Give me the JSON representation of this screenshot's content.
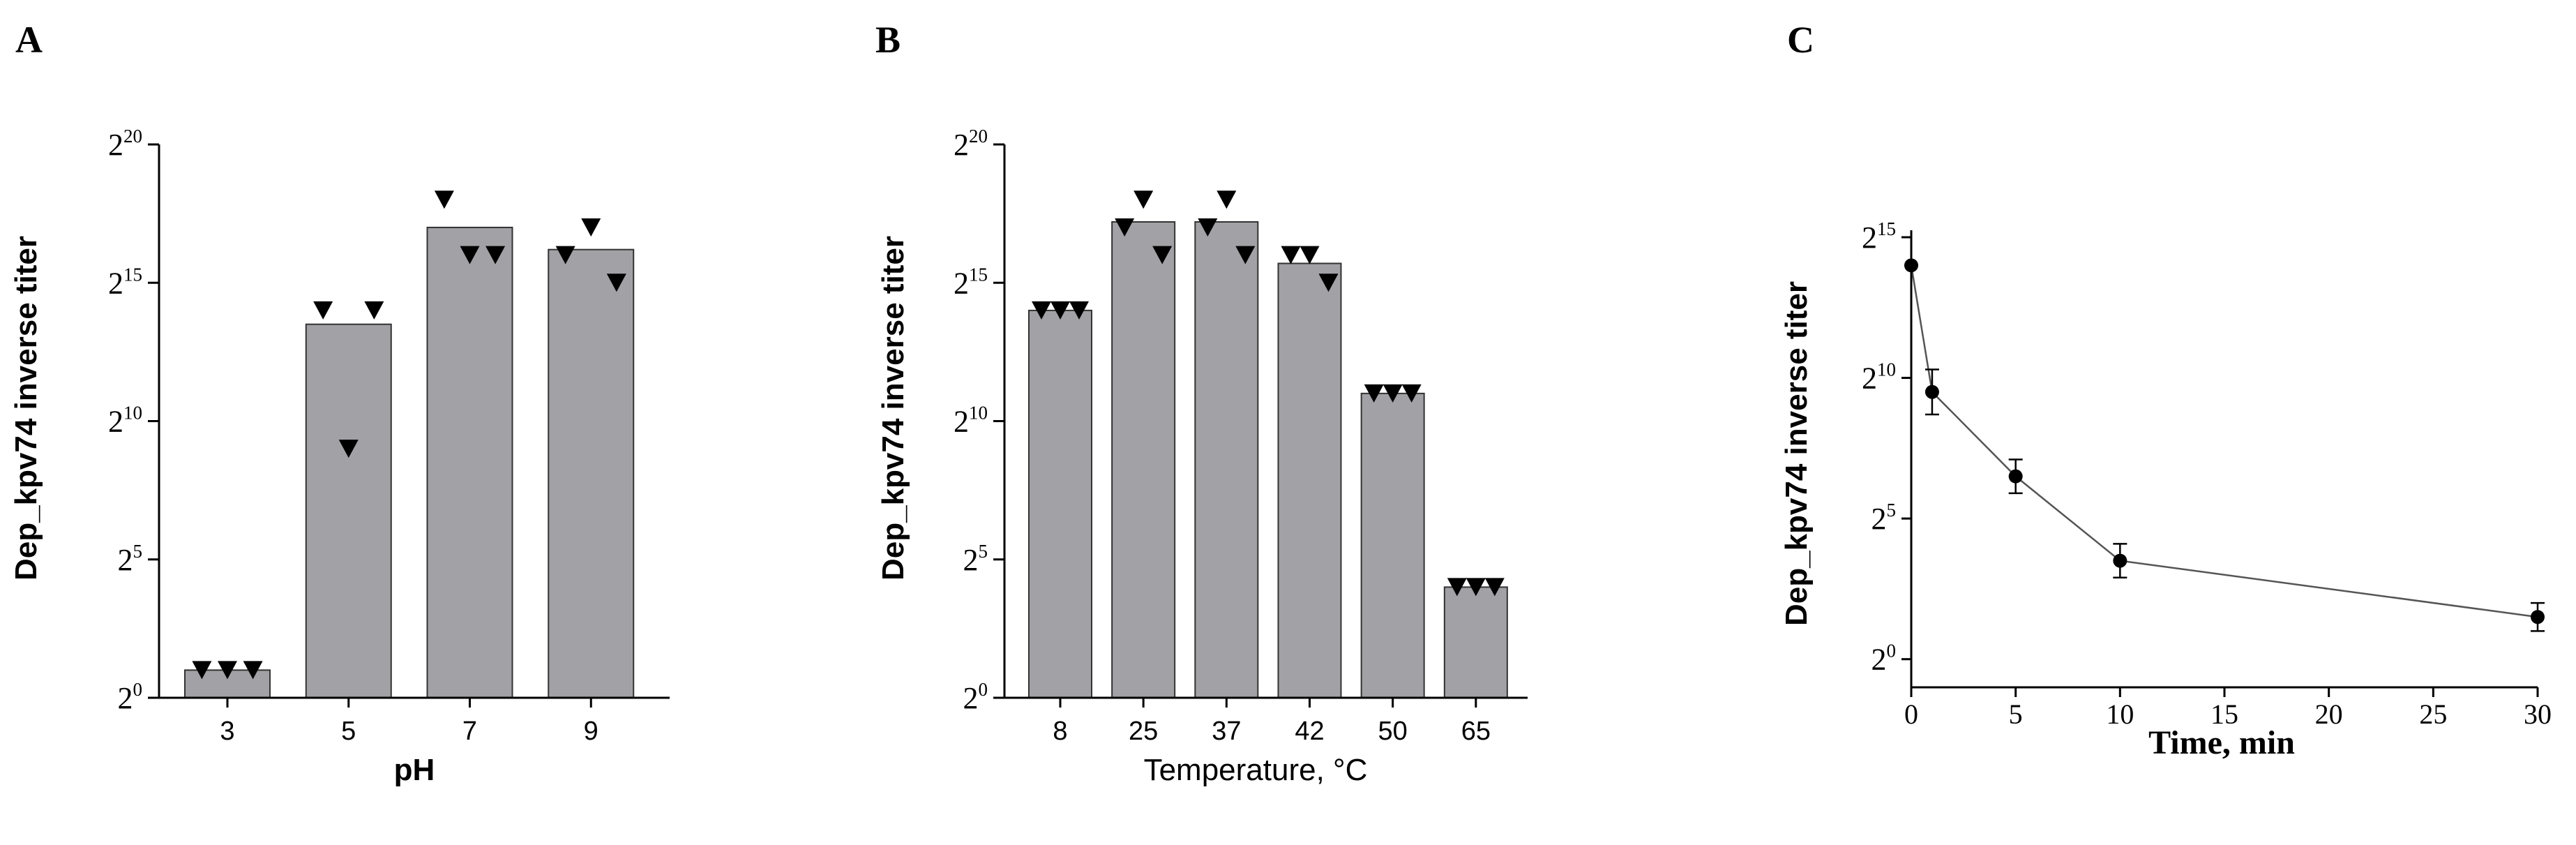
{
  "chart_data": [
    {
      "panel": "A",
      "type": "bar",
      "xlabel": "pH",
      "ylabel": "Dep_kpv74 inverse titer",
      "y_scale": "log2",
      "ylim_exponent": [
        0,
        20
      ],
      "y_tick_base": "2",
      "y_tick_exponents": [
        "0",
        "5",
        "10",
        "15",
        "20"
      ],
      "categories": [
        "3",
        "5",
        "7",
        "9"
      ],
      "values_exponent": [
        1,
        13.5,
        17,
        16.2
      ],
      "replicates_exponent": [
        [
          1,
          1,
          1
        ],
        [
          14,
          9,
          14
        ],
        [
          18,
          16,
          16
        ],
        [
          16,
          17,
          15
        ]
      ],
      "bar_color": "#a1a1a6",
      "marker": "down-triangle"
    },
    {
      "panel": "B",
      "type": "bar",
      "xlabel": "Temperature, °C",
      "ylabel": "Dep_kpv74 inverse titer",
      "y_scale": "log2",
      "ylim_exponent": [
        0,
        20
      ],
      "y_tick_base": "2",
      "y_tick_exponents": [
        "0",
        "5",
        "10",
        "15",
        "20"
      ],
      "categories": [
        "8",
        "25",
        "37",
        "42",
        "50",
        "65"
      ],
      "values_exponent": [
        14,
        17.2,
        17.2,
        15.7,
        11,
        4
      ],
      "replicates_exponent": [
        [
          14,
          14,
          14
        ],
        [
          17,
          18,
          16
        ],
        [
          17,
          18,
          16
        ],
        [
          16,
          16,
          15
        ],
        [
          11,
          11,
          11
        ],
        [
          4,
          4,
          4
        ]
      ],
      "bar_color": "#a1a1a6",
      "marker": "down-triangle"
    },
    {
      "panel": "C",
      "type": "line",
      "xlabel": "Time, min",
      "ylabel": "Dep_kpv74 inverse titer",
      "y_scale": "log2",
      "ylim_exponent": [
        -1,
        15
      ],
      "y_tick_base": "2",
      "y_tick_exponents": [
        "0",
        "5",
        "10",
        "15"
      ],
      "x_ticks": [
        "0",
        "5",
        "10",
        "15",
        "20",
        "25",
        "30"
      ],
      "xlim": [
        0,
        30
      ],
      "x": [
        0,
        1,
        5,
        10,
        30
      ],
      "y_exponent": [
        14,
        9.5,
        6.5,
        3.5,
        1.5
      ],
      "error_exponent": [
        0,
        0.8,
        0.6,
        0.6,
        0.5
      ],
      "marker": "filled-circle"
    }
  ]
}
